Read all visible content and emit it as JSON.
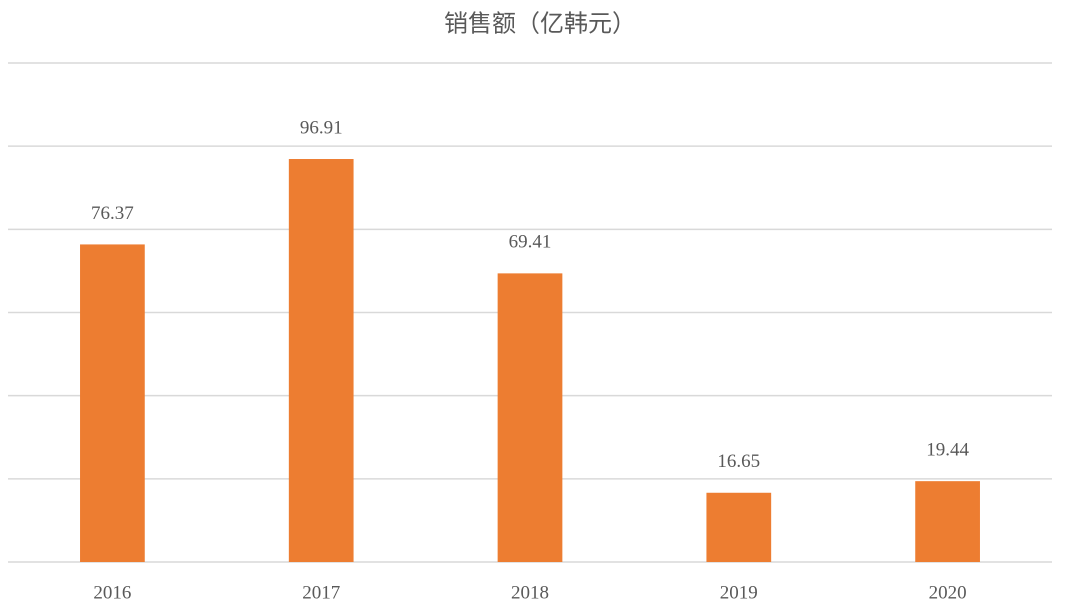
{
  "chart_data": {
    "type": "bar",
    "title": "销售额（亿韩元）",
    "categories": [
      "2016",
      "2017",
      "2018",
      "2019",
      "2020"
    ],
    "values": [
      76.37,
      96.91,
      69.41,
      16.65,
      19.44
    ],
    "color": "#ed7d31",
    "ylim": [
      0,
      120
    ],
    "yticks": [
      0,
      20,
      40,
      60,
      80,
      100,
      120
    ],
    "grid": true
  }
}
